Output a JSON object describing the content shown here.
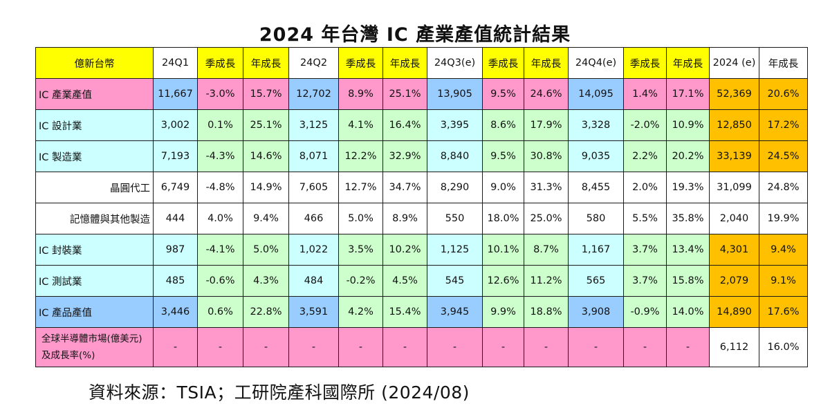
{
  "title": "2024 年台灣 IC 產業產值統計結果",
  "header": [
    "億新台幣",
    "24Q1",
    "季成長",
    "年成長",
    "24Q2",
    "季成長",
    "年成長",
    "24Q3(e)",
    "季成長",
    "年成長",
    "24Q4(e)",
    "季成長",
    "年成長",
    "2024 (e)",
    "年成長"
  ],
  "rows": [
    {
      "label": "IC 產業產值",
      "cells": [
        "11,667",
        "-3.0%",
        "15.7%",
        "12,702",
        "8.9%",
        "25.1%",
        "13,905",
        "9.5%",
        "24.6%",
        "14,095",
        "1.4%",
        "17.1%",
        "52,369",
        "20.6%"
      ]
    },
    {
      "label": "IC 設計業",
      "cells": [
        "3,002",
        "0.1%",
        "25.1%",
        "3,125",
        "4.1%",
        "16.4%",
        "3,395",
        "8.6%",
        "17.9%",
        "3,328",
        "-2.0%",
        "10.9%",
        "12,850",
        "17.2%"
      ]
    },
    {
      "label": "IC 製造業",
      "cells": [
        "7,193",
        "-4.3%",
        "14.6%",
        "8,071",
        "12.2%",
        "32.9%",
        "8,840",
        "9.5%",
        "30.8%",
        "9,035",
        "2.2%",
        "20.2%",
        "33,139",
        "24.5%"
      ]
    },
    {
      "label": "晶圓代工",
      "cells": [
        "6,749",
        "-4.8%",
        "14.9%",
        "7,605",
        "12.7%",
        "34.7%",
        "8,290",
        "9.0%",
        "31.3%",
        "8,455",
        "2.0%",
        "19.3%",
        "31,099",
        "24.8%"
      ]
    },
    {
      "label": "記憶體與其他製造",
      "cells": [
        "444",
        "4.0%",
        "9.4%",
        "466",
        "5.0%",
        "8.9%",
        "550",
        "18.0%",
        "25.0%",
        "580",
        "5.5%",
        "35.8%",
        "2,040",
        "19.9%"
      ]
    },
    {
      "label": "IC 封裝業",
      "cells": [
        "987",
        "-4.1%",
        "5.0%",
        "1,022",
        "3.5%",
        "10.2%",
        "1,125",
        "10.1%",
        "8.7%",
        "1,167",
        "3.7%",
        "13.4%",
        "4,301",
        "9.4%"
      ]
    },
    {
      "label": "IC 測試業",
      "cells": [
        "485",
        "-0.6%",
        "4.3%",
        "484",
        "-0.2%",
        "4.5%",
        "545",
        "12.6%",
        "11.2%",
        "565",
        "3.7%",
        "15.8%",
        "2,079",
        "9.1%"
      ]
    },
    {
      "label": "IC 產品產值",
      "cells": [
        "3,446",
        "0.6%",
        "22.8%",
        "3,591",
        "4.2%",
        "15.4%",
        "3,945",
        "9.9%",
        "18.8%",
        "3,908",
        "-0.9%",
        "14.0%",
        "14,890",
        "17.6%"
      ]
    },
    {
      "label": "全球半導體市場(億美元)及成長率(%)",
      "cells": [
        "-",
        "-",
        "-",
        "-",
        "-",
        "-",
        "-",
        "-",
        "-",
        "-",
        "-",
        "-",
        "6,112",
        "16.0%"
      ]
    }
  ],
  "source": "資料來源：TSIA；工研院產科國際所  (2024/08)",
  "colors": {
    "header_yellow": "#ffff00",
    "pink": "#ff99cc",
    "cyan": "#ccffff",
    "green": "#ccffcc",
    "blue": "#99ccff",
    "orange": "#ffc000",
    "white": "#ffffff"
  }
}
